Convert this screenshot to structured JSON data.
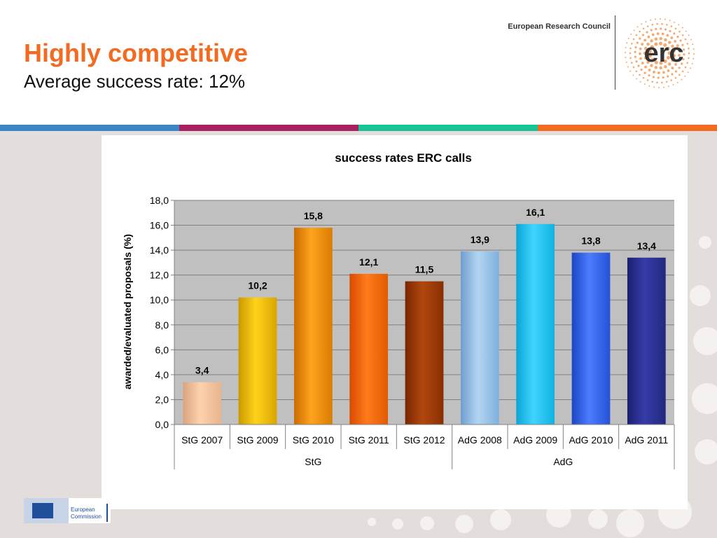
{
  "slide": {
    "title": "Highly competitive",
    "subtitle": "Average success rate: 12%",
    "org_name": "European Research Council",
    "logo_text": "erc",
    "footer_logo_lines": [
      "European",
      "Commission"
    ]
  },
  "colors": {
    "title": "#f26b21",
    "stripes": [
      "#3a87c8",
      "#a9215e",
      "#16c392",
      "#f26b21"
    ],
    "plot_bg": "#c0c0c0"
  },
  "chart_data": {
    "type": "bar",
    "title": "success rates ERC calls",
    "xlabel": "",
    "ylabel": "awarded/evaluated proposals (%)",
    "ylim": [
      0,
      18
    ],
    "ytick_step": 2,
    "ytick_labels": [
      "0,0",
      "2,0",
      "4,0",
      "6,0",
      "8,0",
      "10,0",
      "12,0",
      "14,0",
      "16,0",
      "18,0"
    ],
    "grid": true,
    "legend": "none",
    "categories": [
      "StG 2007",
      "StG 2009",
      "StG 2010",
      "StG 2011",
      "StG 2012",
      "AdG 2008",
      "AdG 2009",
      "AdG 2010",
      "AdG 2011"
    ],
    "values": [
      3.4,
      10.2,
      15.8,
      12.1,
      11.5,
      13.9,
      16.1,
      13.8,
      13.4
    ],
    "value_labels": [
      "3,4",
      "10,2",
      "15,8",
      "12,1",
      "11,5",
      "13,9",
      "16,1",
      "13,8",
      "13,4"
    ],
    "groups": [
      {
        "label": "StG",
        "count": 5
      },
      {
        "label": "AdG",
        "count": 4
      }
    ],
    "bar_colors": [
      [
        "#d9a57e",
        "#fcd2ad",
        "#e8b48c"
      ],
      [
        "#c99a00",
        "#ffd21a",
        "#d9a500"
      ],
      [
        "#c96c00",
        "#ffa31f",
        "#d97c00"
      ],
      [
        "#d94a00",
        "#ff7a1a",
        "#e05a00"
      ],
      [
        "#7a2600",
        "#b0470f",
        "#8a2f00"
      ],
      [
        "#6f9fcf",
        "#b3d4f2",
        "#7fb0dd"
      ],
      [
        "#0aa5d6",
        "#3fd4ff",
        "#11b1e0"
      ],
      [
        "#1a45c4",
        "#4d7cff",
        "#2552d6"
      ],
      [
        "#1b1f70",
        "#363ca8",
        "#22287f"
      ]
    ]
  }
}
